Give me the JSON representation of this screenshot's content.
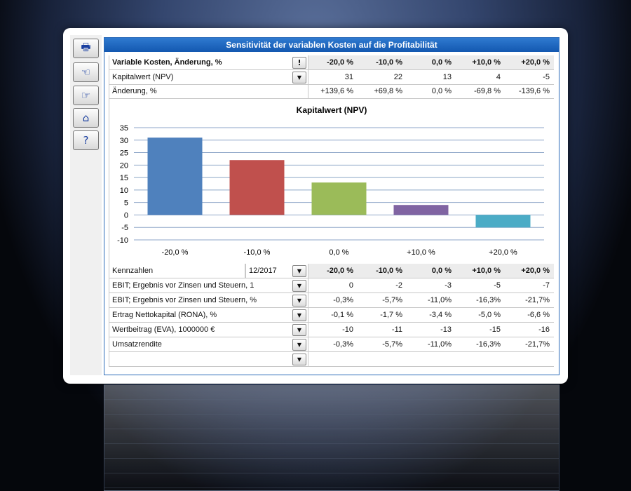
{
  "title": "Sensitivität der variablen Kosten auf die Profitabilität",
  "toolbar": [
    {
      "icon": "printer-icon",
      "glyph": "🖶"
    },
    {
      "icon": "hand-left-icon",
      "glyph": "☜"
    },
    {
      "icon": "hand-right-icon",
      "glyph": "☞"
    },
    {
      "icon": "home-icon",
      "glyph": "⌂"
    },
    {
      "icon": "help-icon",
      "glyph": "?"
    }
  ],
  "top_table": {
    "header_label": "Variable Kosten, Änderung, %",
    "header_button": "!",
    "columns": [
      "-20,0 %",
      "-10,0 %",
      "0,0 %",
      "+10,0 %",
      "+20,0 %"
    ],
    "rows": [
      {
        "label": "Kapitalwert (NPV)",
        "dropdown": true,
        "values": [
          "31",
          "22",
          "13",
          "4",
          "-5"
        ]
      },
      {
        "label": "Änderung, %",
        "dropdown": false,
        "values": [
          "+139,6 %",
          "+69,8 %",
          "0,0 %",
          "-69,8 %",
          "-139,6 %"
        ]
      }
    ]
  },
  "chart_data": {
    "type": "bar",
    "title": "Kapitalwert (NPV)",
    "categories": [
      "-20,0 %",
      "-10,0 %",
      "0,0 %",
      "+10,0 %",
      "+20,0 %"
    ],
    "values": [
      31,
      22,
      13,
      4,
      -5
    ],
    "colors": [
      "#4f81bd",
      "#c0504d",
      "#9bbb59",
      "#8064a2",
      "#4bacc6"
    ],
    "ylim": [
      -10,
      35
    ],
    "yticks": [
      35,
      30,
      25,
      20,
      15,
      10,
      5,
      0,
      -5,
      -10
    ],
    "grid": true,
    "xlabel": "",
    "ylabel": ""
  },
  "bottom_table": {
    "header_label": "Kennzahlen",
    "period": "12/2017",
    "columns": [
      "-20,0 %",
      "-10,0 %",
      "0,0 %",
      "+10,0 %",
      "+20,0 %"
    ],
    "rows": [
      {
        "label": "EBIT; Ergebnis vor Zinsen und Steuern, 1",
        "values": [
          "0",
          "-2",
          "-3",
          "-5",
          "-7"
        ]
      },
      {
        "label": "EBIT; Ergebnis vor Zinsen und Steuern, %",
        "values": [
          "-0,3%",
          "-5,7%",
          "-11,0%",
          "-16,3%",
          "-21,7%"
        ]
      },
      {
        "label": "Ertrag Nettokapital (RONA),  %",
        "values": [
          "-0,1 %",
          "-1,7 %",
          "-3,4 %",
          "-5,0 %",
          "-6,6 %"
        ]
      },
      {
        "label": "Wertbeitrag (EVA), 1000000 €",
        "values": [
          "-10",
          "-11",
          "-13",
          "-15",
          "-16"
        ]
      },
      {
        "label": "Umsatzrendite",
        "values": [
          "-0,3%",
          "-5,7%",
          "-11,0%",
          "-16,3%",
          "-21,7%"
        ]
      },
      {
        "label": "",
        "values": [
          "",
          "",
          "",
          "",
          ""
        ]
      }
    ]
  }
}
